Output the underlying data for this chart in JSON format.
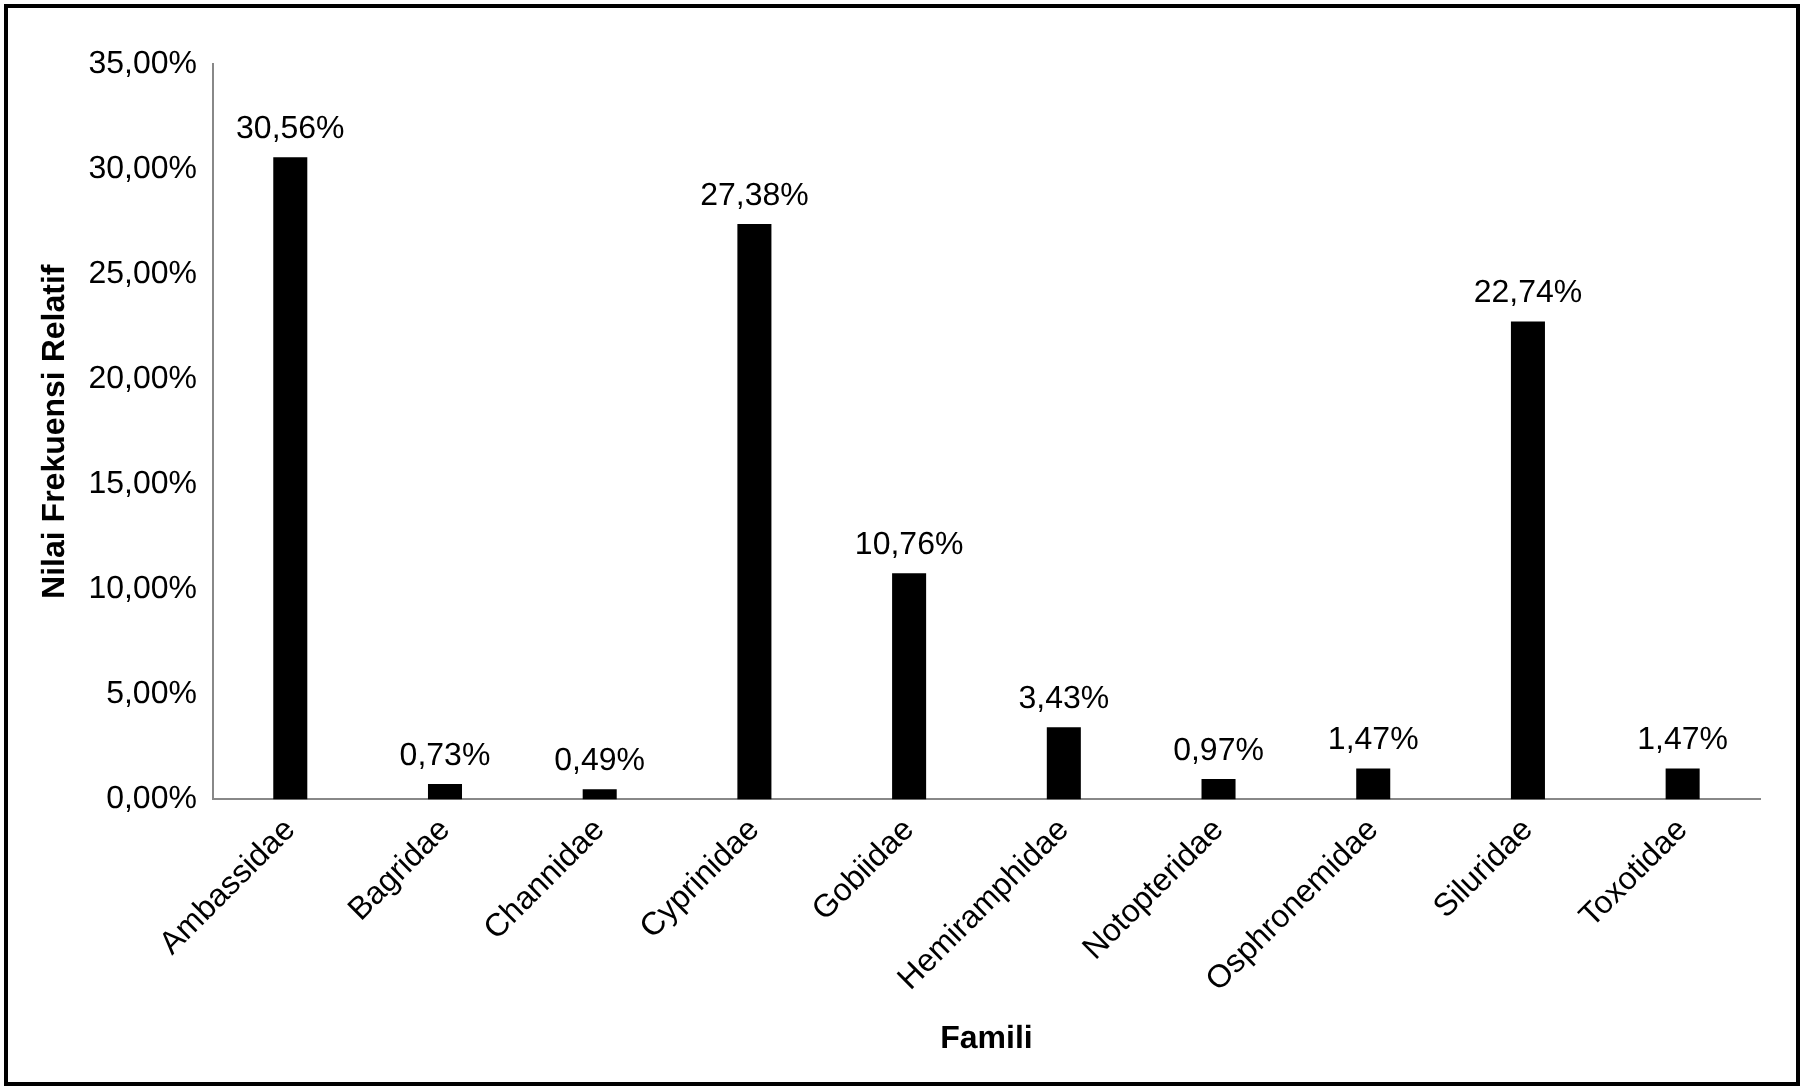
{
  "chart_data": {
    "type": "bar",
    "xlabel": "Famili",
    "ylabel": "Nilai Frekuensi Relatif",
    "categories": [
      "Ambassidae",
      "Bagridae",
      "Channidae",
      "Cyprinidae",
      "Gobiidae",
      "Hemiramphidae",
      "Notopteridae",
      "Osphronemidae",
      "Siluridae",
      "Toxotidae"
    ],
    "values": [
      30.56,
      0.73,
      0.49,
      27.38,
      10.76,
      3.43,
      0.97,
      1.47,
      22.74,
      1.47
    ],
    "value_labels": [
      "30,56%",
      "0,73%",
      "0,49%",
      "27,38%",
      "10,76%",
      "3,43%",
      "0,97%",
      "1,47%",
      "22,74%",
      "1,47%"
    ],
    "color": "#000000",
    "ylim": [
      0,
      35
    ],
    "yticks": [
      {
        "value": 0,
        "label": "0,00%"
      },
      {
        "value": 5,
        "label": "5,00%"
      },
      {
        "value": 10,
        "label": "10,00%"
      },
      {
        "value": 15,
        "label": "15,00%"
      },
      {
        "value": 20,
        "label": "20,00%"
      },
      {
        "value": 25,
        "label": "25,00%"
      },
      {
        "value": 30,
        "label": "30,00%"
      },
      {
        "value": 35,
        "label": "35,00%"
      }
    ],
    "grid": false,
    "legend": false
  }
}
